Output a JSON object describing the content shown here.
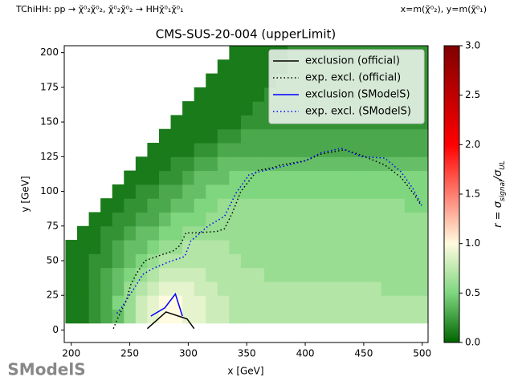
{
  "chart_data": {
    "type": "heatmap",
    "title": "CMS-SUS-20-004 (upperLimit)",
    "process": "TChiHH: pp → χ̃⁰₂χ̃⁰₂, χ̃⁰₂χ̃⁰₂ → HHχ̃⁰₁χ̃⁰₁",
    "axes_note": "x=m(χ̃⁰₂), y=m(χ̃⁰₁)",
    "xlabel": "x [GeV]",
    "ylabel": "y [GeV]",
    "colorbar_label": [
      "r = σ",
      "signal",
      "/σ",
      "UL"
    ],
    "logo": "SModelS",
    "xlim": [
      194,
      505
    ],
    "ylim": [
      -9,
      205
    ],
    "xticks": [
      200,
      250,
      300,
      350,
      400,
      450,
      500
    ],
    "yticks": [
      0,
      25,
      50,
      75,
      100,
      125,
      150,
      175,
      200
    ],
    "clim": [
      0,
      3
    ],
    "cticks": [
      {
        "value": 0,
        "label": "0.0"
      },
      0.5,
      {
        "value": 1,
        "label": "1.0"
      },
      1.5,
      {
        "value": 2,
        "label": "2.0"
      },
      2.5,
      {
        "value": 3,
        "label": "3.0"
      }
    ],
    "colormap": [
      [
        0,
        "#006400"
      ],
      [
        0.5,
        "#7fd67f"
      ],
      [
        1,
        "#fffbe0"
      ],
      [
        2,
        "#ff0000"
      ],
      [
        3,
        "#800000"
      ]
    ],
    "legend": "upper right",
    "x": [
      200,
      210,
      220,
      230,
      240,
      250,
      260,
      270,
      280,
      290,
      300,
      310,
      320,
      330,
      340,
      350,
      360,
      370,
      380,
      390,
      400,
      410,
      420,
      430,
      440,
      450,
      460,
      470,
      480,
      490,
      500
    ],
    "y": [
      10,
      20,
      30,
      40,
      50,
      60,
      70,
      80,
      90,
      100,
      110,
      120,
      130,
      140,
      150,
      160,
      170,
      180,
      190,
      200
    ],
    "z": [
      [
        0.1,
        0.1,
        0.2,
        0.3,
        0.4,
        0.6,
        0.8,
        0.9,
        1.0,
        1.0,
        0.9,
        0.9,
        0.8,
        0.8,
        0.7,
        0.7,
        0.7,
        0.7,
        0.7,
        0.7,
        0.7,
        0.7,
        0.7,
        0.7,
        0.7,
        0.7,
        0.7,
        0.7,
        0.7,
        0.7,
        0.7
      ],
      [
        0.1,
        0.1,
        0.2,
        0.3,
        0.5,
        0.6,
        0.8,
        0.9,
        1.0,
        1.0,
        0.9,
        0.9,
        0.8,
        0.8,
        0.7,
        0.7,
        0.7,
        0.7,
        0.7,
        0.7,
        0.7,
        0.7,
        0.7,
        0.7,
        0.7,
        0.7,
        0.7,
        0.7,
        0.7,
        0.7,
        0.7
      ],
      [
        0.1,
        0.1,
        0.2,
        0.3,
        0.4,
        0.6,
        0.7,
        0.8,
        0.9,
        0.9,
        0.9,
        0.8,
        0.8,
        0.7,
        0.7,
        0.7,
        0.7,
        0.7,
        0.7,
        0.7,
        0.7,
        0.7,
        0.7,
        0.7,
        0.7,
        0.7,
        0.7,
        0.6,
        0.6,
        0.6,
        0.6
      ],
      [
        0.1,
        0.1,
        0.2,
        0.3,
        0.4,
        0.5,
        0.6,
        0.7,
        0.8,
        0.8,
        0.8,
        0.8,
        0.7,
        0.7,
        0.7,
        0.7,
        0.7,
        0.6,
        0.6,
        0.6,
        0.6,
        0.6,
        0.6,
        0.6,
        0.6,
        0.6,
        0.6,
        0.6,
        0.6,
        0.6,
        0.6
      ],
      [
        0.1,
        0.1,
        0.2,
        0.2,
        0.3,
        0.4,
        0.5,
        0.6,
        0.7,
        0.7,
        0.7,
        0.7,
        0.7,
        0.7,
        0.7,
        0.6,
        0.6,
        0.6,
        0.6,
        0.6,
        0.6,
        0.6,
        0.6,
        0.6,
        0.6,
        0.6,
        0.6,
        0.6,
        0.6,
        0.6,
        0.6
      ],
      [
        0.1,
        0.1,
        0.1,
        0.2,
        0.3,
        0.4,
        0.4,
        0.5,
        0.6,
        0.6,
        0.7,
        0.7,
        0.7,
        0.7,
        0.6,
        0.6,
        0.6,
        0.6,
        0.6,
        0.6,
        0.6,
        0.6,
        0.6,
        0.6,
        0.6,
        0.6,
        0.6,
        0.6,
        0.6,
        0.6,
        0.6
      ],
      [
        null,
        0.1,
        0.1,
        0.2,
        0.2,
        0.3,
        0.4,
        0.4,
        0.5,
        0.5,
        0.6,
        0.6,
        0.6,
        0.6,
        0.6,
        0.6,
        0.6,
        0.6,
        0.6,
        0.6,
        0.6,
        0.6,
        0.6,
        0.6,
        0.6,
        0.6,
        0.6,
        0.6,
        0.6,
        0.6,
        0.6
      ],
      [
        null,
        null,
        0.1,
        0.1,
        0.2,
        0.2,
        0.3,
        0.3,
        0.4,
        0.5,
        0.5,
        0.5,
        0.6,
        0.6,
        0.6,
        0.6,
        0.6,
        0.6,
        0.6,
        0.6,
        0.6,
        0.6,
        0.6,
        0.6,
        0.6,
        0.6,
        0.6,
        0.6,
        0.6,
        0.6,
        0.6
      ],
      [
        null,
        null,
        null,
        0.1,
        0.1,
        0.2,
        0.2,
        0.3,
        0.3,
        0.4,
        0.4,
        0.5,
        0.5,
        0.6,
        0.6,
        0.6,
        0.6,
        0.6,
        0.6,
        0.6,
        0.6,
        0.6,
        0.6,
        0.6,
        0.6,
        0.6,
        0.6,
        0.6,
        0.6,
        0.5,
        0.5
      ],
      [
        null,
        null,
        null,
        null,
        0.1,
        0.1,
        0.2,
        0.2,
        0.3,
        0.3,
        0.4,
        0.4,
        0.5,
        0.5,
        0.5,
        0.5,
        0.5,
        0.5,
        0.5,
        0.5,
        0.5,
        0.5,
        0.5,
        0.5,
        0.5,
        0.5,
        0.5,
        0.5,
        0.5,
        0.5,
        0.5
      ],
      [
        null,
        null,
        null,
        null,
        null,
        0.1,
        0.1,
        0.1,
        0.2,
        0.2,
        0.3,
        0.4,
        0.4,
        0.4,
        0.5,
        0.5,
        0.5,
        0.5,
        0.5,
        0.5,
        0.5,
        0.5,
        0.5,
        0.5,
        0.5,
        0.5,
        0.5,
        0.5,
        0.5,
        0.5,
        0.5
      ],
      [
        null,
        null,
        null,
        null,
        null,
        null,
        0.1,
        0.1,
        0.1,
        0.2,
        0.2,
        0.3,
        0.3,
        0.4,
        0.4,
        0.4,
        0.4,
        0.4,
        0.4,
        0.4,
        0.4,
        0.4,
        0.4,
        0.4,
        0.4,
        0.4,
        0.4,
        0.4,
        0.4,
        0.4,
        0.4
      ],
      [
        null,
        null,
        null,
        null,
        null,
        null,
        null,
        0.1,
        0.1,
        0.1,
        0.1,
        0.2,
        0.2,
        0.3,
        0.3,
        0.3,
        0.3,
        0.3,
        0.3,
        0.3,
        0.3,
        0.3,
        0.3,
        0.3,
        0.3,
        0.3,
        0.3,
        0.3,
        0.3,
        0.3,
        0.3
      ],
      [
        null,
        null,
        null,
        null,
        null,
        null,
        null,
        null,
        0.1,
        0.1,
        0.1,
        0.1,
        0.1,
        0.2,
        0.2,
        0.3,
        0.3,
        0.3,
        0.3,
        0.3,
        0.3,
        0.3,
        0.3,
        0.3,
        0.3,
        0.3,
        0.3,
        0.3,
        0.3,
        0.3,
        0.3
      ],
      [
        null,
        null,
        null,
        null,
        null,
        null,
        null,
        null,
        null,
        0.1,
        0.1,
        0.1,
        0.1,
        0.1,
        0.1,
        0.2,
        0.2,
        0.2,
        0.2,
        0.2,
        0.2,
        0.2,
        0.2,
        0.2,
        0.2,
        0.2,
        0.2,
        0.2,
        0.2,
        0.2,
        0.2
      ],
      [
        null,
        null,
        null,
        null,
        null,
        null,
        null,
        null,
        null,
        null,
        0.1,
        0.1,
        0.1,
        0.1,
        0.1,
        0.1,
        0.2,
        0.2,
        0.2,
        0.2,
        0.2,
        0.2,
        0.2,
        0.2,
        0.2,
        0.2,
        0.2,
        0.2,
        0.2,
        0.2,
        0.2
      ],
      [
        null,
        null,
        null,
        null,
        null,
        null,
        null,
        null,
        null,
        null,
        null,
        0.1,
        0.1,
        0.1,
        0.1,
        0.1,
        0.1,
        0.2,
        0.2,
        0.2,
        0.2,
        0.2,
        0.2,
        0.2,
        0.2,
        0.2,
        0.2,
        0.2,
        0.2,
        0.2,
        0.2
      ],
      [
        null,
        null,
        null,
        null,
        null,
        null,
        null,
        null,
        null,
        null,
        null,
        null,
        0.1,
        0.1,
        0.1,
        0.1,
        0.1,
        0.1,
        0.2,
        0.2,
        0.2,
        0.2,
        0.2,
        0.2,
        0.2,
        0.2,
        0.2,
        0.2,
        0.2,
        0.2,
        0.2
      ],
      [
        null,
        null,
        null,
        null,
        null,
        null,
        null,
        null,
        null,
        null,
        null,
        null,
        null,
        0.1,
        0.1,
        0.1,
        0.1,
        0.1,
        0.1,
        0.2,
        0.2,
        0.2,
        0.2,
        0.2,
        0.2,
        0.2,
        0.2,
        0.2,
        0.2,
        0.2,
        0.2
      ],
      [
        null,
        null,
        null,
        null,
        null,
        null,
        null,
        null,
        null,
        null,
        null,
        null,
        null,
        null,
        0.1,
        0.1,
        0.1,
        0.1,
        0.1,
        0.2,
        0.2,
        0.2,
        0.2,
        0.2,
        0.2,
        0.2,
        0.2,
        0.2,
        0.2,
        0.2,
        0.2
      ]
    ],
    "series": [
      {
        "name": "exclusion (official)",
        "color": "#000000",
        "style": "solid",
        "x": [
          265,
          281,
          299,
          305
        ],
        "y": [
          1,
          13,
          8,
          1
        ]
      },
      {
        "name": "exp. excl. (official)",
        "color": "#000000",
        "style": "dotted",
        "x": [
          236,
          240,
          247,
          251,
          256,
          263,
          273,
          287,
          293,
          298,
          304,
          324,
          331,
          338,
          345,
          359,
          372,
          379,
          400,
          414,
          434,
          448,
          468,
          482,
          492,
          499
        ],
        "y": [
          1,
          9,
          21,
          33,
          41,
          50,
          53,
          57,
          61,
          70,
          70,
          71,
          73,
          85,
          100,
          115,
          117,
          119,
          122,
          127,
          130,
          126,
          119,
          110,
          99,
          90
        ]
      },
      {
        "name": "exclusion (SModelS)",
        "color": "#0000ff",
        "style": "solid",
        "x": [
          268,
          280,
          289,
          295
        ],
        "y": [
          10,
          16,
          26,
          10
        ]
      },
      {
        "name": "exp. excl. (SModelS)",
        "color": "#0000ff",
        "style": "dotted",
        "x": [
          239,
          242,
          249,
          256,
          261,
          269,
          283,
          297,
          302,
          317,
          331,
          341,
          352,
          365,
          386,
          400,
          414,
          431,
          448,
          468,
          482,
          492,
          500
        ],
        "y": [
          12,
          15,
          24,
          33,
          40,
          44,
          49,
          53,
          64,
          75,
          82,
          99,
          112,
          115,
          119,
          122,
          128,
          131,
          125,
          124,
          114,
          102,
          89
        ]
      }
    ]
  }
}
